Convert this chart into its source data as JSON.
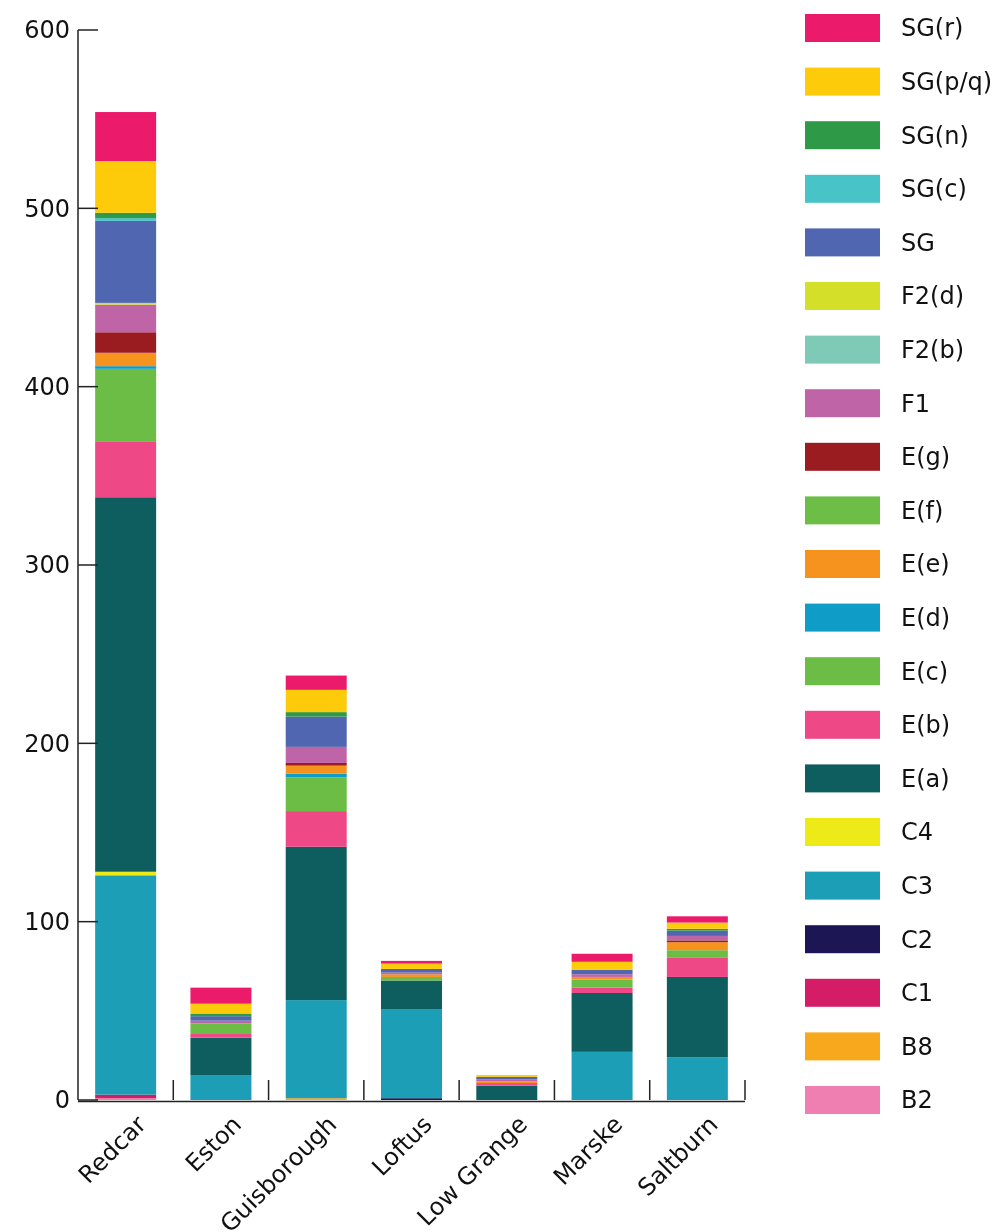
{
  "chart_data": {
    "type": "bar",
    "stacked": true,
    "categories": [
      "Redcar",
      "Eston",
      "Guisborough",
      "Loftus",
      "Low Grange",
      "Marske",
      "Saltburn"
    ],
    "ylim": [
      0,
      600
    ],
    "yticks": [
      0,
      100,
      200,
      300,
      400,
      500,
      600
    ],
    "grid": false,
    "legend": "right",
    "series": [
      {
        "name": "B2",
        "color": "#f07fb1",
        "values": [
          1,
          0,
          0,
          0,
          0,
          0,
          0
        ]
      },
      {
        "name": "B8",
        "color": "#f8a81c",
        "values": [
          0,
          0,
          1,
          0,
          0,
          0,
          0
        ]
      },
      {
        "name": "C1",
        "color": "#d51d67",
        "values": [
          2,
          0,
          0,
          0,
          0,
          0,
          0
        ]
      },
      {
        "name": "C2",
        "color": "#1c1654",
        "values": [
          0,
          0,
          0,
          1,
          0,
          0,
          0
        ]
      },
      {
        "name": "C3",
        "color": "#1c9eb6",
        "values": [
          123,
          14,
          55,
          50,
          0,
          27,
          24
        ]
      },
      {
        "name": "C4",
        "color": "#eeea17",
        "values": [
          2,
          0,
          0,
          0,
          0,
          0,
          0
        ]
      },
      {
        "name": "E(a)",
        "color": "#0e5e60",
        "values": [
          210,
          21,
          86,
          16,
          8,
          33,
          45
        ]
      },
      {
        "name": "E(b)",
        "color": "#ee4886",
        "values": [
          31,
          2,
          20,
          0,
          1.5,
          3,
          11
        ]
      },
      {
        "name": "E(c)",
        "color": "#6cbd45",
        "values": [
          41,
          6,
          19,
          2,
          0,
          4.5,
          4
        ]
      },
      {
        "name": "E(d)",
        "color": "#0f9dc8",
        "values": [
          1.5,
          0,
          2,
          0,
          0,
          0,
          0
        ]
      },
      {
        "name": "E(e)",
        "color": "#f6921e",
        "values": [
          7.5,
          0,
          4.5,
          1.5,
          1,
          1.5,
          4.5
        ]
      },
      {
        "name": "E(f)",
        "color": "#6dbe46",
        "values": [
          0,
          0,
          0,
          0,
          0,
          0,
          0
        ]
      },
      {
        "name": "E(g)",
        "color": "#9a1b20",
        "values": [
          11.5,
          0,
          1.5,
          0,
          0,
          0,
          1
        ]
      },
      {
        "name": "F1",
        "color": "#c064a8",
        "values": [
          15.5,
          1.5,
          9,
          1,
          1,
          1.5,
          2.5
        ]
      },
      {
        "name": "F2(b)",
        "color": "#7ecab6",
        "values": [
          0,
          0,
          0,
          0,
          0,
          0,
          0
        ]
      },
      {
        "name": "F2(d)",
        "color": "#d4df2a",
        "values": [
          1,
          0,
          0,
          0,
          0,
          0,
          0
        ]
      },
      {
        "name": "SG",
        "color": "#5066b0",
        "values": [
          46,
          2.5,
          17,
          2,
          1.5,
          2.5,
          3
        ]
      },
      {
        "name": "SG(c)",
        "color": "#48c3c7",
        "values": [
          1.5,
          0,
          0,
          0,
          0,
          0,
          0
        ]
      },
      {
        "name": "SG(n)",
        "color": "#2e9a47",
        "values": [
          3,
          1.5,
          2.5,
          0,
          0,
          0,
          1
        ]
      },
      {
        "name": "SG(p/q)",
        "color": "#fdcb0a",
        "values": [
          29,
          5.5,
          12.5,
          3,
          1,
          4.5,
          3.5
        ]
      },
      {
        "name": "SG(r)",
        "color": "#ec1a6b",
        "values": [
          27.5,
          9,
          8,
          1.5,
          0,
          4.5,
          3.5
        ]
      }
    ]
  }
}
